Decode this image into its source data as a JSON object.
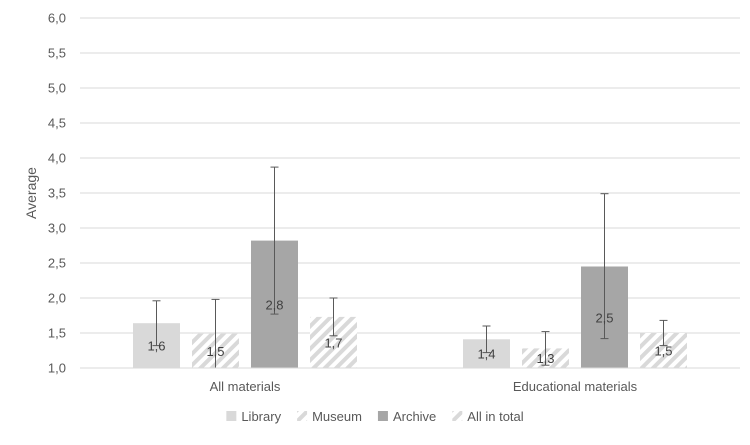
{
  "chart_data": {
    "type": "bar",
    "title": "",
    "xlabel": "",
    "ylabel": "Average",
    "ylim": [
      1.0,
      6.0
    ],
    "ytick_step": 0.5,
    "grid": true,
    "legend_position": "bottom",
    "categories": [
      "All materials",
      "Educational materials"
    ],
    "series": [
      {
        "name": "Library",
        "values": [
          1.64,
          1.41
        ],
        "labels": [
          "1,6",
          "1,4"
        ],
        "error_low": [
          1.32,
          1.22
        ],
        "error_high": [
          1.96,
          1.6
        ],
        "fill": "solid",
        "color": "#d9d9d9"
      },
      {
        "name": "Museum",
        "values": [
          1.49,
          1.28
        ],
        "labels": [
          "1,5",
          "1,3"
        ],
        "error_low": [
          1.0,
          1.04
        ],
        "error_high": [
          1.98,
          1.52
        ],
        "fill": "hatch",
        "color": "#d9d9d9"
      },
      {
        "name": "Archive",
        "values": [
          2.82,
          2.45
        ],
        "labels": [
          "2,8",
          "2,5"
        ],
        "error_low": [
          1.77,
          1.42
        ],
        "error_high": [
          3.87,
          3.49
        ],
        "fill": "solid",
        "color": "#a6a6a6"
      },
      {
        "name": "All in total",
        "values": [
          1.73,
          1.5
        ],
        "labels": [
          "1,7",
          "1,5"
        ],
        "error_low": [
          1.46,
          1.32
        ],
        "error_high": [
          2.0,
          1.68
        ],
        "fill": "hatch",
        "color": "#d9d9d9"
      }
    ]
  }
}
